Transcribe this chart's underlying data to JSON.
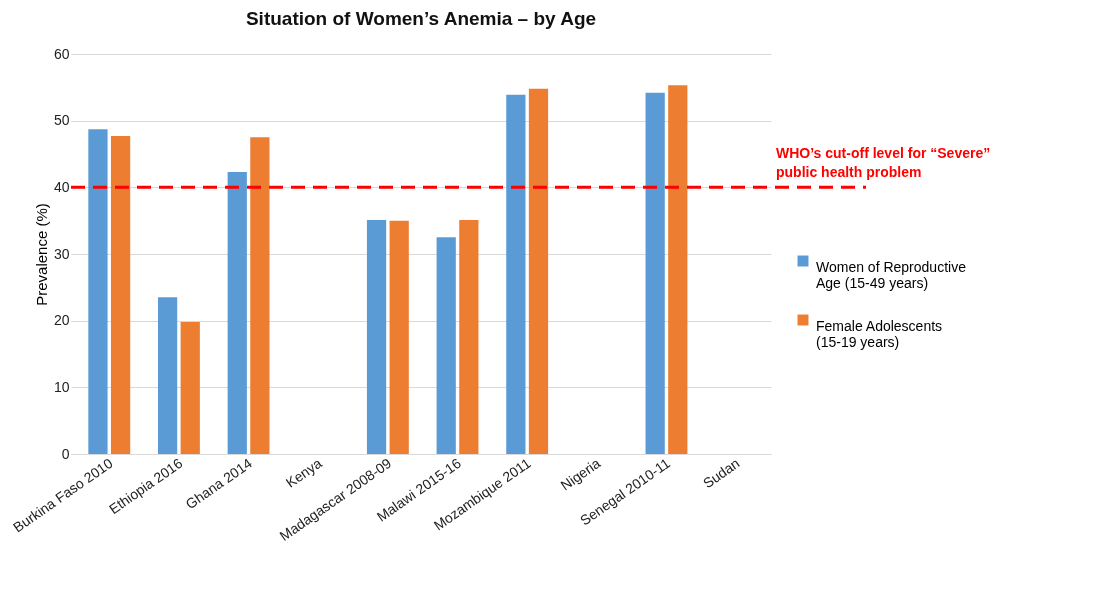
{
  "chart_data": {
    "type": "bar",
    "title": "Situation of Women’s Anemia – by Age",
    "ylabel": "Prevalence (%)",
    "categories": [
      "Burkina Faso 2010",
      "Ethiopia 2016",
      "Ghana 2014",
      "Kenya",
      "Madagascar 2008-09",
      "Malawi 2015-16",
      "Mozambique 2011",
      "Nigeria",
      "Senegal 2010-11",
      "Sudan"
    ],
    "series": [
      {
        "name": "Women of Reproductive Age (15-49 years)",
        "color": "#5b9bd5",
        "values": [
          48.7,
          23.5,
          42.3,
          null,
          35.1,
          32.5,
          53.9,
          null,
          54.2,
          null
        ]
      },
      {
        "name": "Female Adolescents (15-19 years)",
        "color": "#ed7d31",
        "values": [
          47.7,
          19.8,
          47.5,
          null,
          35.0,
          35.1,
          54.8,
          null,
          55.3,
          null
        ]
      }
    ],
    "ylim": [
      0,
      60
    ],
    "yticks": [
      0,
      10,
      20,
      30,
      40,
      50,
      60
    ],
    "grid": "y",
    "legend": "right",
    "ref_lines": [
      {
        "axis": "y",
        "value": 40,
        "label": "WHO’s cut-off level for “Severe” public health problem",
        "color": "#ff0000",
        "line_style": "dashed"
      }
    ]
  }
}
